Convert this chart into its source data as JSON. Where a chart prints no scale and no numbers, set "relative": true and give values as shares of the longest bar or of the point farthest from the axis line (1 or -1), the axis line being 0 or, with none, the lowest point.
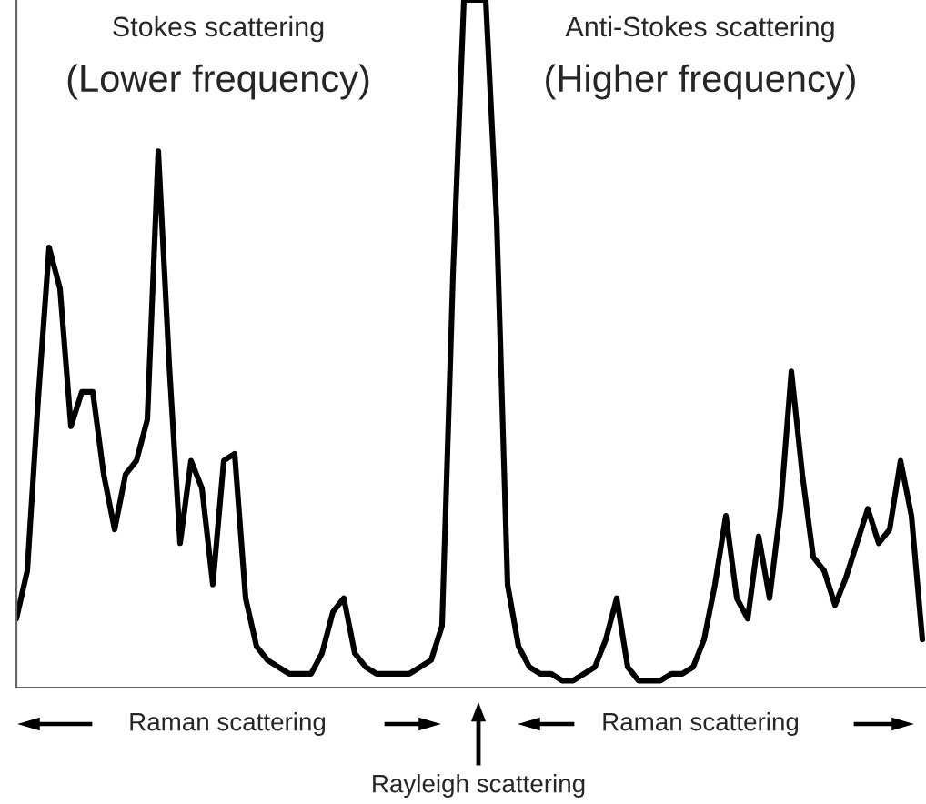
{
  "chart_data": {
    "type": "line",
    "relative": true,
    "categories": [
      null,
      null,
      null,
      null,
      null,
      null,
      null,
      null,
      null,
      null,
      null,
      null,
      null,
      null,
      null,
      null,
      null,
      null,
      null,
      null,
      null,
      null,
      null,
      null,
      null,
      null,
      null,
      null,
      null,
      null,
      null,
      null,
      null,
      null,
      null,
      null,
      null,
      null,
      null,
      null,
      null,
      null,
      null,
      null,
      null,
      null,
      null,
      null,
      null,
      null,
      null,
      null,
      null,
      null,
      null,
      null,
      null,
      null,
      null,
      null,
      null,
      null,
      null,
      null,
      null,
      null,
      null,
      null,
      null,
      null,
      null,
      null,
      null,
      null,
      null,
      null,
      null,
      null,
      null,
      null,
      null,
      null,
      null,
      null
    ],
    "series": [
      {
        "color": "#000000",
        "values": [
          0.1,
          0.17,
          0.42,
          0.64,
          0.58,
          0.38,
          0.43,
          0.43,
          0.31,
          0.23,
          0.31,
          0.33,
          0.39,
          0.78,
          0.47,
          0.21,
          0.33,
          0.29,
          0.15,
          0.33,
          0.34,
          0.13,
          0.06,
          0.04,
          0.03,
          0.02,
          0.02,
          0.02,
          0.05,
          0.11,
          0.13,
          0.05,
          0.03,
          0.02,
          0.02,
          0.02,
          0.02,
          0.03,
          0.04,
          0.09,
          0.6,
          1,
          1,
          1,
          0.68,
          0.15,
          0.06,
          0.03,
          0.02,
          0.02,
          0.01,
          0.01,
          0.02,
          0.03,
          0.07,
          0.13,
          0.03,
          0.01,
          0.01,
          0.01,
          0.02,
          0.02,
          0.03,
          0.07,
          0.15,
          0.25,
          0.13,
          0.1,
          0.22,
          0.13,
          0.26,
          0.46,
          0.31,
          0.19,
          0.17,
          0.12,
          0.16,
          0.21,
          0.26,
          0.21,
          0.23,
          0.33,
          0.25,
          0.07
        ]
      }
    ],
    "annotations": [
      "Stokes scattering",
      "(Lower frequency)",
      "Anti-Stokes scattering",
      "(Higher frequency)",
      "Raman scattering",
      "Raman scattering",
      "Rayleigh scattering"
    ],
    "legend": false,
    "marker": "none",
    "line_style": "solid"
  }
}
